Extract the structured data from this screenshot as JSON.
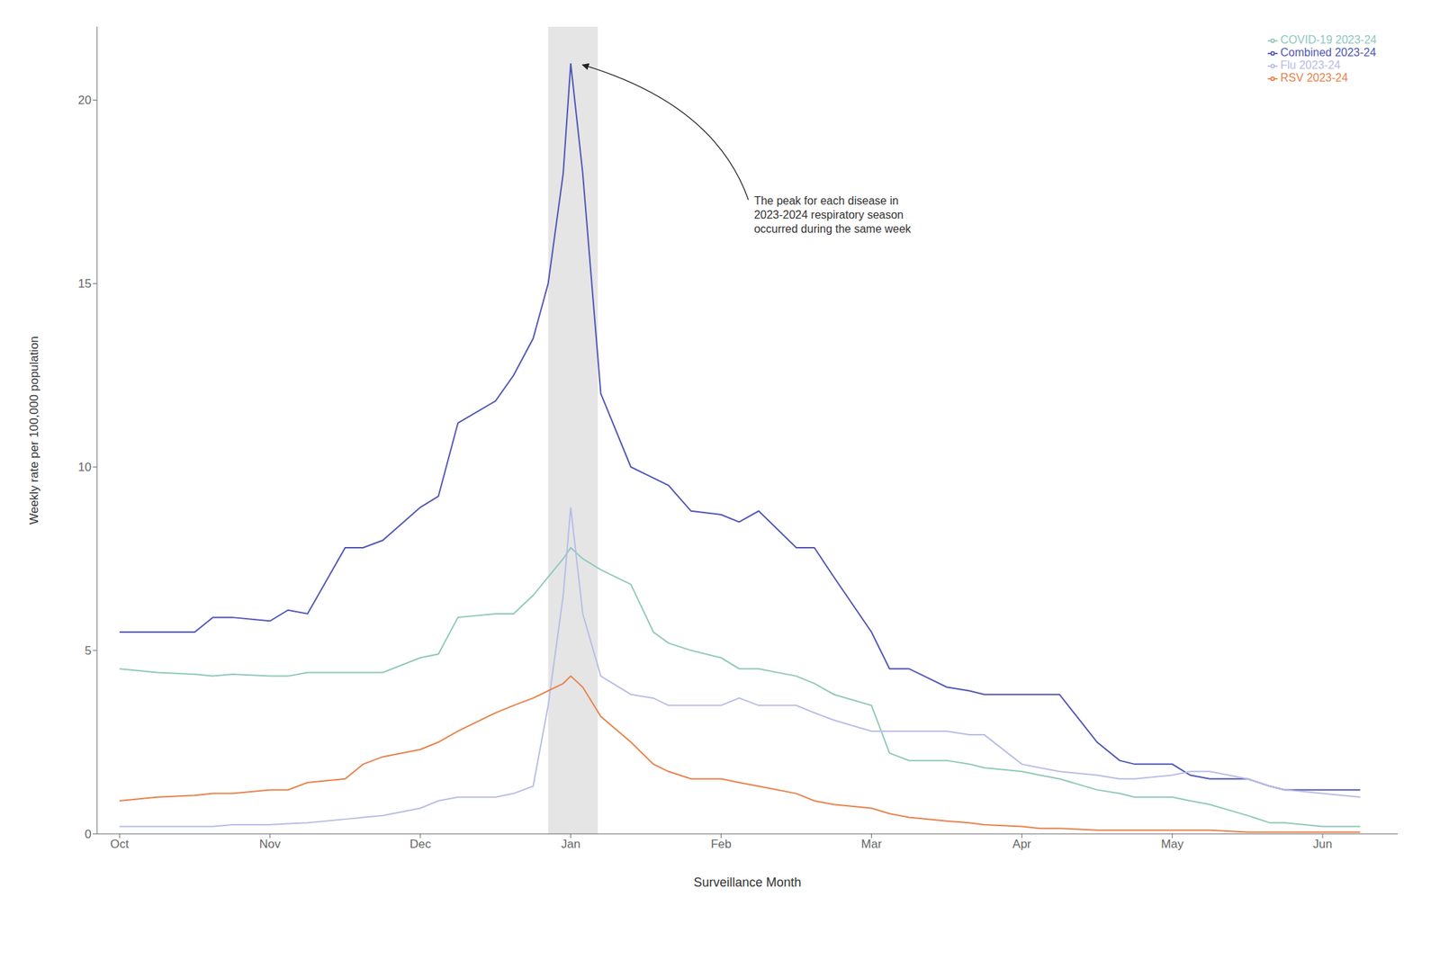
{
  "chart_data": {
    "type": "line",
    "title": "",
    "xlabel": "Surveillance Month",
    "ylabel": "Weekly rate per 100,000 population",
    "xlim": [
      -0.15,
      8.5
    ],
    "xticks": [
      {
        "value": 0,
        "label": "Oct"
      },
      {
        "value": 1,
        "label": "Nov"
      },
      {
        "value": 2,
        "label": "Dec"
      },
      {
        "value": 3,
        "label": "Jan"
      },
      {
        "value": 4,
        "label": "Feb"
      },
      {
        "value": 5,
        "label": "Mar"
      },
      {
        "value": 6,
        "label": "Apr"
      },
      {
        "value": 7,
        "label": "May"
      },
      {
        "value": 8,
        "label": "Jun"
      }
    ],
    "ylim": [
      0,
      22
    ],
    "yticks": [
      0,
      5,
      10,
      15,
      20
    ],
    "grid": false,
    "legend": "upper right",
    "shaded_band": [
      2.85,
      3.18
    ],
    "annotation": {
      "text": "The peak for each disease in\n2023-2024 respiratory season\noccurred during the same week",
      "x": 3.05,
      "y": 21.0
    },
    "x": [
      0,
      0.12,
      0.25,
      0.5,
      0.62,
      0.75,
      1.0,
      1.12,
      1.25,
      1.5,
      1.62,
      1.75,
      2.0,
      2.12,
      2.25,
      2.5,
      2.62,
      2.75,
      2.85,
      2.95,
      3.0,
      3.08,
      3.2,
      3.4,
      3.55,
      3.65,
      3.8,
      4.0,
      4.12,
      4.25,
      4.5,
      4.62,
      4.75,
      5.0,
      5.12,
      5.25,
      5.5,
      5.65,
      5.75,
      6.0,
      6.12,
      6.25,
      6.5,
      6.65,
      6.75,
      7.0,
      7.12,
      7.25,
      7.5,
      7.65,
      7.75,
      8.0,
      8.25
    ],
    "series": [
      {
        "name": "Combined 2023-24",
        "color": "#5055b8",
        "values": [
          5.5,
          5.5,
          5.5,
          5.5,
          5.9,
          5.9,
          5.8,
          6.1,
          6.0,
          7.8,
          7.8,
          8.0,
          8.9,
          9.2,
          11.2,
          11.8,
          12.5,
          13.5,
          15.0,
          18.0,
          21.0,
          18.0,
          12.0,
          10.0,
          9.7,
          9.5,
          8.8,
          8.7,
          8.5,
          8.8,
          7.8,
          7.8,
          7.0,
          5.5,
          4.5,
          4.5,
          4.0,
          3.9,
          3.8,
          3.8,
          3.8,
          3.8,
          2.5,
          2.0,
          1.9,
          1.9,
          1.6,
          1.5,
          1.5,
          1.3,
          1.2,
          1.2,
          1.2
        ]
      },
      {
        "name": "COVID-19 2023-24",
        "color": "#90c8bc",
        "values": [
          4.5,
          4.45,
          4.4,
          4.35,
          4.3,
          4.35,
          4.3,
          4.3,
          4.4,
          4.4,
          4.4,
          4.4,
          4.8,
          4.9,
          5.9,
          6.0,
          6.0,
          6.5,
          7.0,
          7.5,
          7.8,
          7.5,
          7.2,
          6.8,
          5.5,
          5.2,
          5.0,
          4.8,
          4.5,
          4.5,
          4.3,
          4.1,
          3.8,
          3.5,
          2.2,
          2.0,
          2.0,
          1.9,
          1.8,
          1.7,
          1.6,
          1.5,
          1.2,
          1.1,
          1.0,
          1.0,
          0.9,
          0.8,
          0.5,
          0.3,
          0.3,
          0.2,
          0.2
        ]
      },
      {
        "name": "Flu 2023-24",
        "color": "#b8bde8",
        "values": [
          0.2,
          0.2,
          0.2,
          0.2,
          0.2,
          0.25,
          0.25,
          0.28,
          0.3,
          0.4,
          0.45,
          0.5,
          0.7,
          0.9,
          1.0,
          1.0,
          1.1,
          1.3,
          3.5,
          6.5,
          8.9,
          6.0,
          4.3,
          3.8,
          3.7,
          3.5,
          3.5,
          3.5,
          3.7,
          3.5,
          3.5,
          3.3,
          3.1,
          2.8,
          2.8,
          2.8,
          2.8,
          2.7,
          2.7,
          1.9,
          1.8,
          1.7,
          1.6,
          1.5,
          1.5,
          1.6,
          1.7,
          1.7,
          1.5,
          1.3,
          1.2,
          1.1,
          1.0
        ]
      },
      {
        "name": "RSV 2023-24",
        "color": "#e8824a",
        "values": [
          0.9,
          0.95,
          1.0,
          1.05,
          1.1,
          1.1,
          1.2,
          1.2,
          1.4,
          1.5,
          1.9,
          2.1,
          2.3,
          2.5,
          2.8,
          3.3,
          3.5,
          3.7,
          3.9,
          4.1,
          4.3,
          4.0,
          3.2,
          2.5,
          1.9,
          1.7,
          1.5,
          1.5,
          1.4,
          1.3,
          1.1,
          0.9,
          0.8,
          0.7,
          0.55,
          0.45,
          0.35,
          0.3,
          0.25,
          0.2,
          0.15,
          0.15,
          0.1,
          0.1,
          0.1,
          0.1,
          0.1,
          0.1,
          0.05,
          0.05,
          0.05,
          0.05,
          0.05
        ]
      }
    ]
  }
}
